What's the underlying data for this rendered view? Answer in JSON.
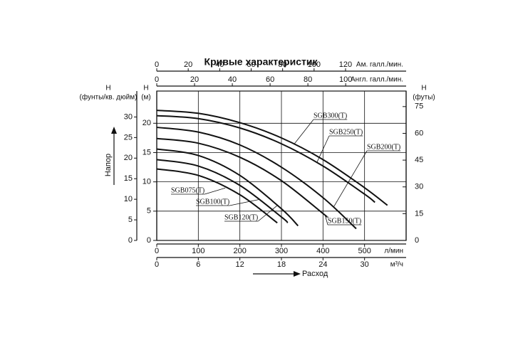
{
  "chart_data": {
    "type": "line",
    "title": "Кривые характеристик",
    "y_axis_label": "Напор",
    "x_axis_label": "Расход",
    "xlabel": "л/мин",
    "xlim": [
      0,
      600
    ],
    "xticks": [
      0,
      100,
      200,
      300,
      400,
      500
    ],
    "ylabel": [
      "Н",
      "(м)"
    ],
    "ylim": [
      0,
      25.5
    ],
    "yticks": [
      0,
      5,
      10,
      15,
      20
    ],
    "grid": true,
    "extra_axes": [
      {
        "id": "top_us",
        "label": "Ам. галл./мин.",
        "lim": [
          0,
          158.5
        ],
        "ticks": [
          0,
          20,
          40,
          60,
          80,
          100,
          120
        ]
      },
      {
        "id": "top_imp",
        "label": "Англ. галл./мин.",
        "lim": [
          0,
          132
        ],
        "ticks": [
          0,
          20,
          40,
          60,
          80,
          100
        ]
      },
      {
        "id": "bottom_m3h",
        "label": "м³/ч",
        "lim": [
          0,
          36
        ],
        "ticks": [
          0,
          6,
          12,
          18,
          24,
          30
        ]
      },
      {
        "id": "left_psi",
        "label": [
          "Н",
          "(фунты/кв. дюйм)"
        ],
        "lim": [
          0,
          36.3
        ],
        "ticks": [
          0,
          5,
          10,
          15,
          20,
          25,
          30
        ]
      },
      {
        "id": "right_ft",
        "label": [
          "Н",
          "(футы)"
        ],
        "lim": [
          0,
          83.7
        ],
        "ticks": [
          0,
          15,
          30,
          45,
          60,
          75
        ]
      }
    ],
    "series": [
      {
        "name": "SGB300(T)",
        "color": "#111111",
        "x": [
          0,
          100,
          200,
          300,
          400,
          500,
          555
        ],
        "values": [
          22.2,
          21.7,
          20.1,
          17.5,
          13.8,
          9.0,
          6.0
        ]
      },
      {
        "name": "SGB250(T)",
        "color": "#111111",
        "x": [
          0,
          100,
          200,
          300,
          400,
          500,
          525
        ],
        "values": [
          21.3,
          20.8,
          19.2,
          16.5,
          12.7,
          7.9,
          6.5
        ]
      },
      {
        "name": "SGB200(T)",
        "color": "#111111",
        "x": [
          0,
          100,
          200,
          300,
          400,
          480
        ],
        "values": [
          19.3,
          18.5,
          16.3,
          12.5,
          7.3,
          2.0
        ]
      },
      {
        "name": "SGB150(T)",
        "color": "#111111",
        "x": [
          0,
          100,
          200,
          300,
          400,
          410
        ],
        "values": [
          17.4,
          16.6,
          14.2,
          10.2,
          4.6,
          4.0
        ]
      },
      {
        "name": "SGB120(T)",
        "color": "#111111",
        "x": [
          0,
          100,
          200,
          300,
          340
        ],
        "values": [
          15.6,
          14.5,
          11.1,
          5.4,
          2.5
        ]
      },
      {
        "name": "SGB100(T)",
        "color": "#111111",
        "x": [
          0,
          100,
          200,
          300,
          315
        ],
        "values": [
          13.8,
          12.7,
          9.4,
          4.0,
          3.0
        ]
      },
      {
        "name": "SGB075(T)",
        "color": "#111111",
        "x": [
          0,
          100,
          200,
          290
        ],
        "values": [
          12.2,
          11.1,
          7.8,
          3.0
        ]
      }
    ]
  }
}
